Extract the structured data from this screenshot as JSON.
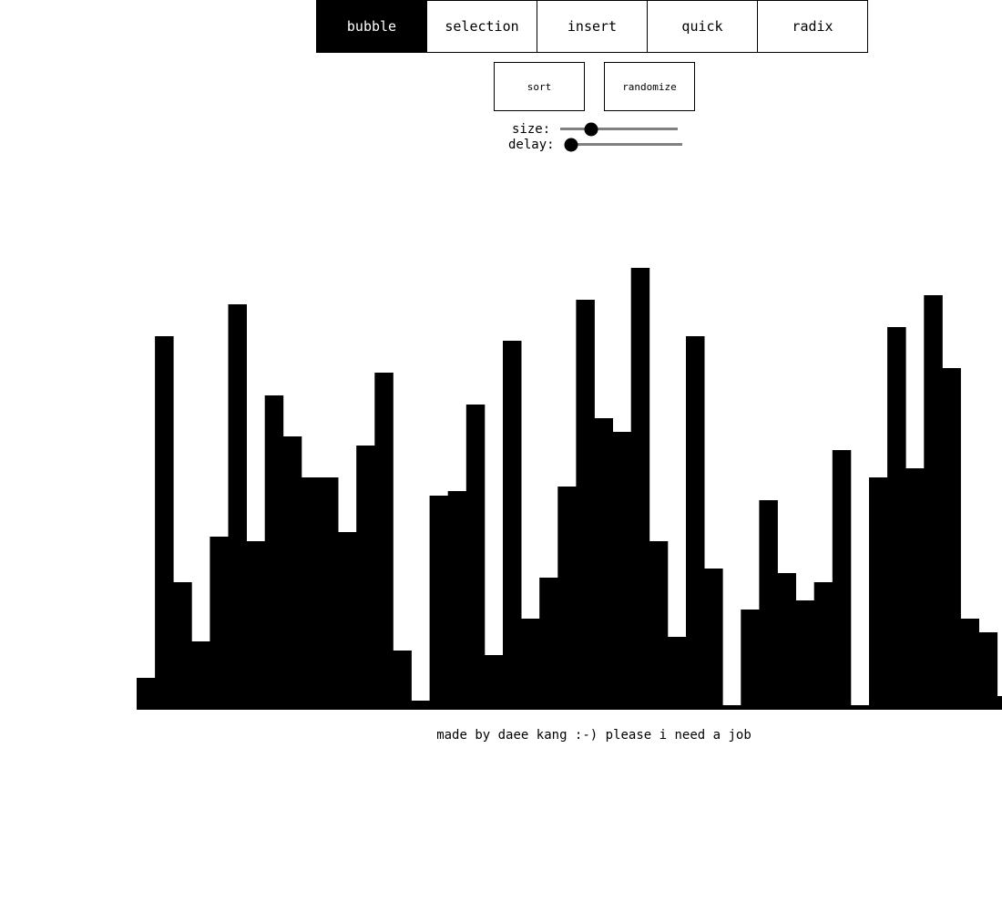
{
  "algorithms": [
    {
      "label": "bubble",
      "active": true
    },
    {
      "label": "selection",
      "active": false
    },
    {
      "label": "insert",
      "active": false
    },
    {
      "label": "quick",
      "active": false
    },
    {
      "label": "radix",
      "active": false
    }
  ],
  "actions": {
    "sort_label": "sort",
    "randomize_label": "randomize"
  },
  "controls": {
    "size": {
      "label": "size:",
      "level": 0.26
    },
    "delay": {
      "label": "delay:",
      "level": 0.06
    }
  },
  "array_values": [
    35,
    410,
    140,
    75,
    190,
    445,
    185,
    345,
    300,
    255,
    255,
    195,
    290,
    370,
    65,
    10,
    235,
    240,
    335,
    60,
    405,
    100,
    145,
    245,
    450,
    320,
    305,
    485,
    185,
    80,
    410,
    155,
    5,
    110,
    230,
    150,
    120,
    140,
    285,
    5,
    255,
    420,
    265,
    455,
    375,
    100,
    85,
    15
  ],
  "array_max": 499,
  "footer": "made by daee kang :-) please i need a job"
}
